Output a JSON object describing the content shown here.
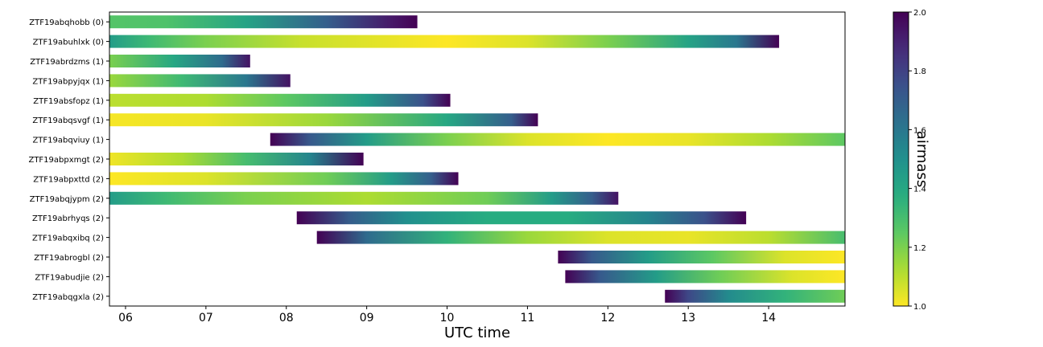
{
  "chart_data": {
    "type": "heatmap",
    "xlabel": "UTC time",
    "xlim": [
      5.8,
      14.95
    ],
    "x_ticks": [
      6,
      7,
      8,
      9,
      10,
      11,
      12,
      13,
      14
    ],
    "x_tick_labels": [
      "06",
      "07",
      "08",
      "09",
      "10",
      "11",
      "12",
      "13",
      "14"
    ],
    "colorbar": {
      "label": "airmass",
      "colormap": "viridis (reversed)",
      "range": [
        1.0,
        2.0
      ],
      "ticks": [
        "1.0",
        "1.2",
        "1.4",
        "1.6",
        "1.8",
        "2.0"
      ],
      "tick_values": [
        1.0,
        1.2,
        1.4,
        1.6,
        1.8,
        2.0
      ]
    },
    "rows": [
      {
        "label": "ZTF19abqhobb (0)",
        "start": 5.8,
        "end": 9.63,
        "stops": [
          [
            5.8,
            1.27
          ],
          [
            6.5,
            1.28
          ],
          [
            7.5,
            1.42
          ],
          [
            8.5,
            1.7
          ],
          [
            9.3,
            1.93
          ],
          [
            9.63,
            2.0
          ]
        ]
      },
      {
        "label": "ZTF19abuhlxk (0)",
        "start": 5.8,
        "end": 14.13,
        "stops": [
          [
            5.8,
            1.45
          ],
          [
            6.3,
            1.32
          ],
          [
            7.0,
            1.2
          ],
          [
            8.2,
            1.08
          ],
          [
            10.0,
            1.0
          ],
          [
            11.0,
            1.05
          ],
          [
            12.0,
            1.2
          ],
          [
            13.0,
            1.42
          ],
          [
            13.6,
            1.6
          ],
          [
            14.13,
            2.0
          ]
        ]
      },
      {
        "label": "ZTF19abrdzms (1)",
        "start": 5.8,
        "end": 7.55,
        "stops": [
          [
            5.8,
            1.2
          ],
          [
            6.6,
            1.4
          ],
          [
            7.2,
            1.65
          ],
          [
            7.55,
            1.95
          ]
        ]
      },
      {
        "label": "ZTF19abpyjqx (1)",
        "start": 5.8,
        "end": 8.05,
        "stops": [
          [
            5.8,
            1.15
          ],
          [
            6.7,
            1.32
          ],
          [
            7.5,
            1.6
          ],
          [
            8.05,
            1.95
          ]
        ]
      },
      {
        "label": "ZTF19absfopz (1)",
        "start": 5.8,
        "end": 10.04,
        "stops": [
          [
            5.8,
            1.1
          ],
          [
            7.0,
            1.12
          ],
          [
            8.0,
            1.25
          ],
          [
            9.0,
            1.45
          ],
          [
            9.7,
            1.75
          ],
          [
            10.04,
            2.0
          ]
        ]
      },
      {
        "label": "ZTF19abqsvgf (1)",
        "start": 5.8,
        "end": 11.13,
        "stops": [
          [
            5.8,
            1.01
          ],
          [
            7.0,
            1.03
          ],
          [
            8.5,
            1.15
          ],
          [
            10.0,
            1.4
          ],
          [
            10.8,
            1.7
          ],
          [
            11.13,
            2.0
          ]
        ]
      },
      {
        "label": "ZTF19abqviuy (1)",
        "start": 7.8,
        "end": 14.95,
        "stops": [
          [
            7.8,
            2.0
          ],
          [
            8.3,
            1.72
          ],
          [
            9.0,
            1.45
          ],
          [
            10.0,
            1.2
          ],
          [
            11.0,
            1.05
          ],
          [
            12.0,
            1.0
          ],
          [
            13.0,
            1.03
          ],
          [
            14.0,
            1.12
          ],
          [
            14.95,
            1.25
          ]
        ]
      },
      {
        "label": "ZTF19abpxmgt (2)",
        "start": 5.8,
        "end": 8.96,
        "stops": [
          [
            5.8,
            1.02
          ],
          [
            6.7,
            1.12
          ],
          [
            7.5,
            1.3
          ],
          [
            8.3,
            1.55
          ],
          [
            8.96,
            2.0
          ]
        ]
      },
      {
        "label": "ZTF19abpxttd (2)",
        "start": 5.8,
        "end": 10.14,
        "stops": [
          [
            5.8,
            1.0
          ],
          [
            7.0,
            1.05
          ],
          [
            8.5,
            1.22
          ],
          [
            9.3,
            1.45
          ],
          [
            9.8,
            1.7
          ],
          [
            10.14,
            2.0
          ]
        ]
      },
      {
        "label": "ZTF19abqjypm (2)",
        "start": 5.8,
        "end": 12.13,
        "stops": [
          [
            5.8,
            1.45
          ],
          [
            6.5,
            1.32
          ],
          [
            7.5,
            1.2
          ],
          [
            9.0,
            1.12
          ],
          [
            10.5,
            1.22
          ],
          [
            11.3,
            1.45
          ],
          [
            11.8,
            1.7
          ],
          [
            12.13,
            1.95
          ]
        ]
      },
      {
        "label": "ZTF19abrhyqs (2)",
        "start": 8.13,
        "end": 13.72,
        "stops": [
          [
            8.13,
            2.0
          ],
          [
            8.8,
            1.7
          ],
          [
            9.5,
            1.5
          ],
          [
            10.5,
            1.38
          ],
          [
            11.5,
            1.38
          ],
          [
            12.5,
            1.55
          ],
          [
            13.2,
            1.75
          ],
          [
            13.72,
            2.0
          ]
        ]
      },
      {
        "label": "ZTF19abqxibq (2)",
        "start": 8.38,
        "end": 14.95,
        "stops": [
          [
            8.38,
            2.0
          ],
          [
            9.0,
            1.65
          ],
          [
            10.0,
            1.35
          ],
          [
            11.0,
            1.15
          ],
          [
            12.0,
            1.05
          ],
          [
            13.0,
            1.03
          ],
          [
            14.0,
            1.1
          ],
          [
            14.95,
            1.3
          ]
        ]
      },
      {
        "label": "ZTF19abrogbl (2)",
        "start": 11.38,
        "end": 14.95,
        "stops": [
          [
            11.38,
            2.0
          ],
          [
            11.8,
            1.72
          ],
          [
            12.5,
            1.45
          ],
          [
            13.3,
            1.25
          ],
          [
            14.2,
            1.05
          ],
          [
            14.95,
            1.0
          ]
        ]
      },
      {
        "label": "ZTF19abudjie (2)",
        "start": 11.47,
        "end": 14.95,
        "stops": [
          [
            11.47,
            2.0
          ],
          [
            11.9,
            1.72
          ],
          [
            12.6,
            1.45
          ],
          [
            13.4,
            1.22
          ],
          [
            14.3,
            1.05
          ],
          [
            14.95,
            1.0
          ]
        ]
      },
      {
        "label": "ZTF19abqgxla (2)",
        "start": 12.71,
        "end": 14.95,
        "stops": [
          [
            12.71,
            2.0
          ],
          [
            13.0,
            1.78
          ],
          [
            13.5,
            1.52
          ],
          [
            14.2,
            1.35
          ],
          [
            14.95,
            1.22
          ]
        ]
      }
    ]
  }
}
